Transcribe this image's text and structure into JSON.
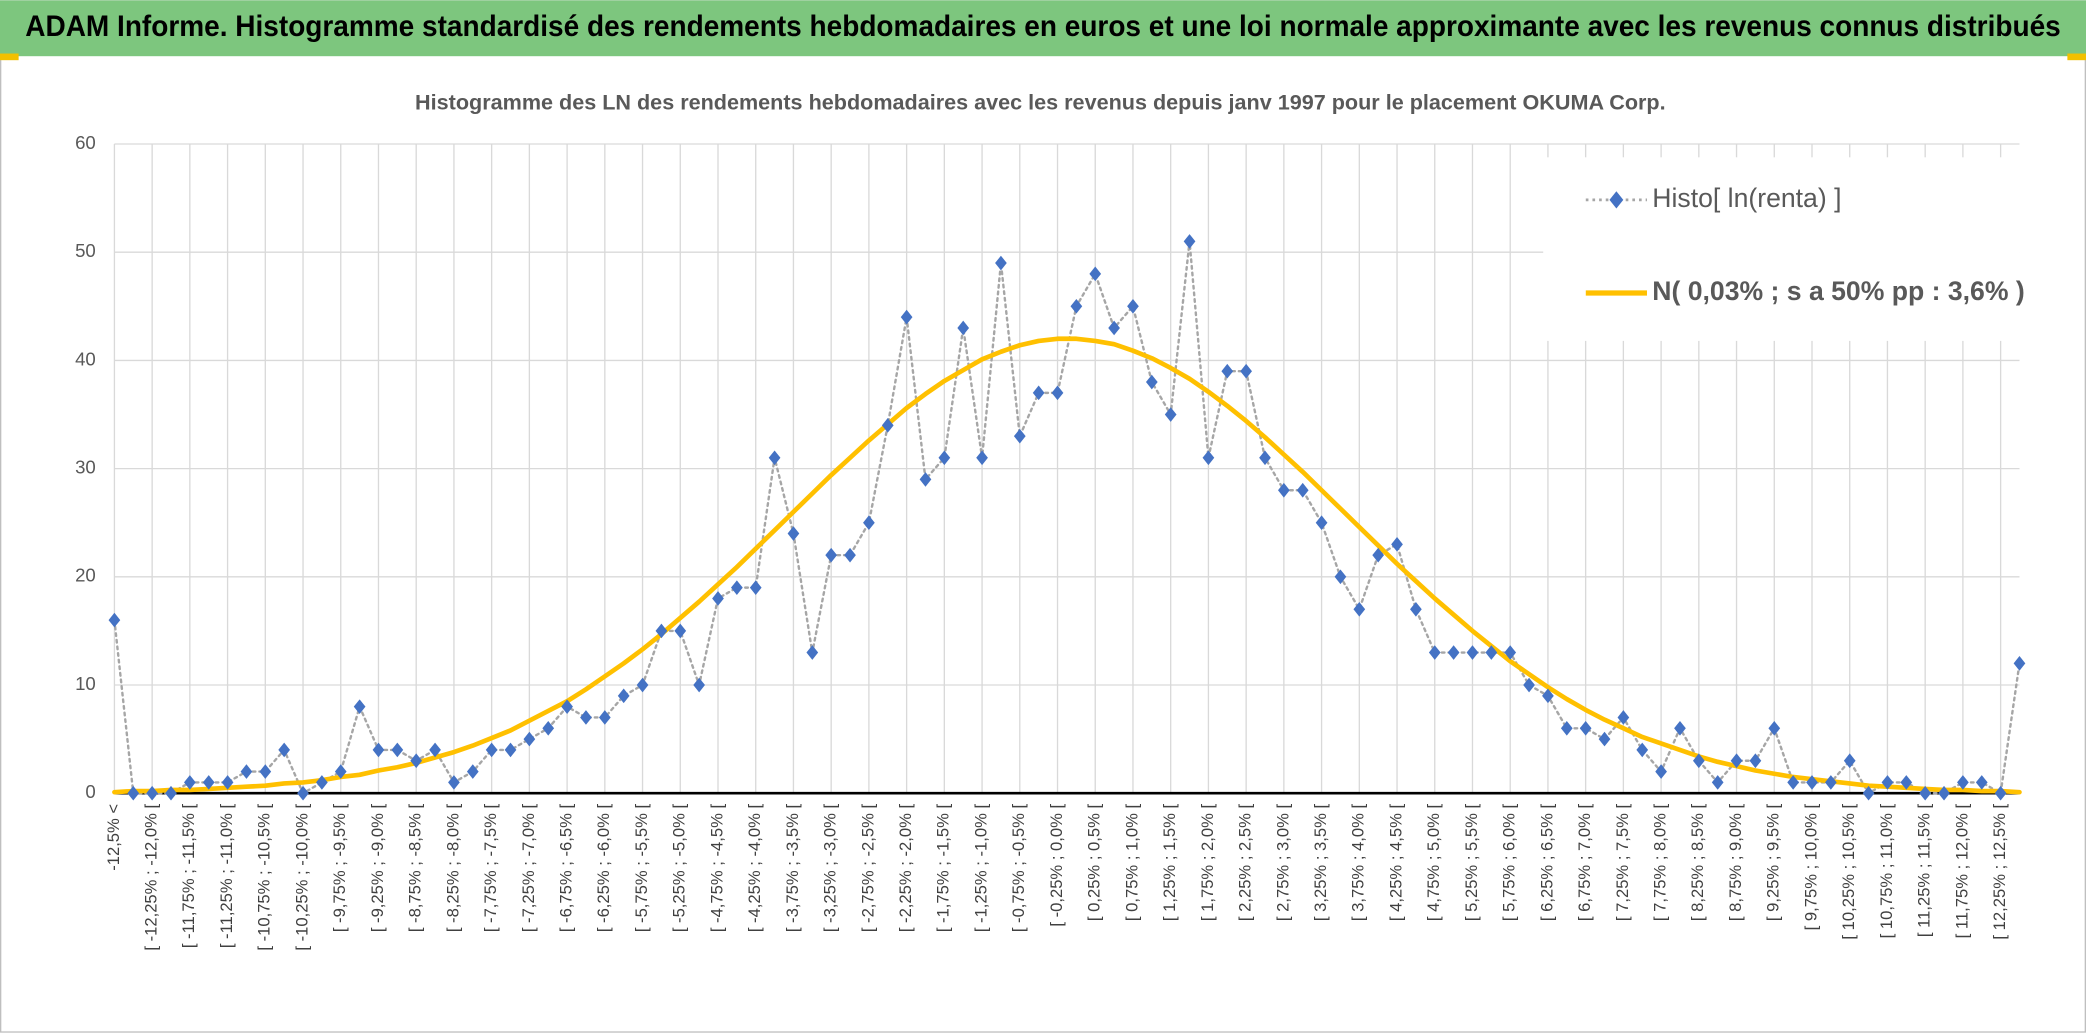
{
  "banner": "ADAM Informe. Histogramme standardisé des rendements hebdomadaires en euros et une loi normale approximante avec les revenus connus distribués",
  "chart_data": {
    "type": "line",
    "title": "Histogramme des LN des rendements hebdomadaires avec les revenus depuis janv 1997 pour le placement OKUMA Corp.",
    "categories": [
      "-12,5% <",
      null,
      "[ -12,25% ; -12,0% [",
      null,
      "[ -11,75% ; -11,5% [",
      null,
      "[ -11,25% ; -11,0% [",
      null,
      "[ -10,75% ; -10,5% [",
      null,
      "[ -10,25% ; -10,0% [",
      null,
      "[ -9,75% ; -9,5% [",
      null,
      "[ -9,25% ; -9,0% [",
      null,
      "[ -8,75% ; -8,5% [",
      null,
      "[ -8,25% ; -8,0% [",
      null,
      "[ -7,75% ; -7,5% [",
      null,
      "[ -7,25% ; -7,0% [",
      null,
      "[ -6,75% ; -6,5% [",
      null,
      "[ -6,25% ; -6,0% [",
      null,
      "[ -5,75% ; -5,5% [",
      null,
      "[ -5,25% ; -5,0% [",
      null,
      "[ -4,75% ; -4,5% [",
      null,
      "[ -4,25% ; -4,0% [",
      null,
      "[ -3,75% ; -3,5% [",
      null,
      "[ -3,25% ; -3,0% [",
      null,
      "[ -2,75% ; -2,5% [",
      null,
      "[ -2,25% ; -2,0% [",
      null,
      "[ -1,75% ; -1,5% [",
      null,
      "[ -1,25% ; -1,0% [",
      null,
      "[ -0,75% ; -0,5% [",
      null,
      "[ -0,25% ; 0,0% [",
      null,
      "[ 0,25% ; 0,5% [",
      null,
      "[ 0,75% ; 1,0% [",
      null,
      "[ 1,25% ; 1,5% [",
      null,
      "[ 1,75% ; 2,0% [",
      null,
      "[ 2,25% ; 2,5% [",
      null,
      "[ 2,75% ; 3,0% [",
      null,
      "[ 3,25% ; 3,5% [",
      null,
      "[ 3,75% ; 4,0% [",
      null,
      "[ 4,25% ; 4,5% [",
      null,
      "[ 4,75% ; 5,0% [",
      null,
      "[ 5,25% ; 5,5% [",
      null,
      "[ 5,75% ; 6,0% [",
      null,
      "[ 6,25% ; 6,5% [",
      null,
      "[ 6,75% ; 7,0% [",
      null,
      "[ 7,25% ; 7,5% [",
      null,
      "[ 7,75% ; 8,0% [",
      null,
      "[ 8,25% ; 8,5% [",
      null,
      "[ 8,75% ; 9,0% [",
      null,
      "[ 9,25% ; 9,5% [",
      null,
      "[ 9,75% ; 10,0% [",
      null,
      "[ 10,25% ; 10,5% [",
      null,
      "[ 10,75% ; 11,0% [",
      null,
      "[ 11,25% ; 11,5% [",
      null,
      "[ 11,75% ; 12,0% [",
      null,
      "[ 12,25% ; 12,5% [",
      null
    ],
    "series": [
      {
        "name": "Histo[ ln(renta) ]",
        "color": "#4472c4",
        "line_color": "#a6a6a6",
        "line_style": "dotted",
        "marker": "diamond",
        "values": [
          16,
          0,
          0,
          0,
          1,
          1,
          1,
          2,
          2,
          4,
          0,
          1,
          2,
          8,
          4,
          4,
          3,
          4,
          1,
          2,
          4,
          4,
          5,
          6,
          8,
          7,
          7,
          9,
          10,
          15,
          15,
          10,
          18,
          19,
          19,
          31,
          24,
          13,
          22,
          22,
          25,
          34,
          44,
          29,
          31,
          43,
          31,
          49,
          33,
          37,
          37,
          45,
          48,
          43,
          45,
          38,
          35,
          51,
          31,
          39,
          39,
          31,
          28,
          28,
          25,
          20,
          17,
          22,
          23,
          17,
          13,
          13,
          13,
          13,
          13,
          10,
          9,
          6,
          6,
          5,
          7,
          4,
          2,
          6,
          3,
          1,
          3,
          3,
          6,
          1,
          1,
          1,
          3,
          0,
          1,
          1,
          0,
          0,
          1,
          1,
          0,
          12
        ]
      },
      {
        "name": "N( 0,03% ; s a 50% pp : 3,6% )",
        "color": "#ffc000",
        "line_style": "solid",
        "marker": "none",
        "values": [
          0.1,
          0.2,
          0.2,
          0.3,
          0.3,
          0.4,
          0.5,
          0.6,
          0.7,
          0.9,
          1.0,
          1.2,
          1.5,
          1.7,
          2.1,
          2.4,
          2.8,
          3.3,
          3.8,
          4.4,
          5.1,
          5.8,
          6.7,
          7.6,
          8.5,
          9.6,
          10.8,
          12.0,
          13.3,
          14.7,
          16.2,
          17.7,
          19.3,
          20.9,
          22.6,
          24.3,
          26.0,
          27.7,
          29.4,
          31.0,
          32.6,
          34.1,
          35.6,
          36.9,
          38.1,
          39.1,
          40.1,
          40.8,
          41.4,
          41.8,
          42.0,
          42.0,
          41.8,
          41.5,
          40.9,
          40.2,
          39.3,
          38.3,
          37.1,
          35.8,
          34.4,
          32.9,
          31.3,
          29.7,
          28.0,
          26.3,
          24.6,
          22.9,
          21.2,
          19.6,
          18.0,
          16.5,
          15.0,
          13.6,
          12.2,
          11.0,
          9.8,
          8.7,
          7.7,
          6.8,
          6.0,
          5.2,
          4.6,
          4.0,
          3.4,
          2.9,
          2.5,
          2.1,
          1.8,
          1.5,
          1.3,
          1.1,
          0.9,
          0.7,
          0.6,
          0.5,
          0.4,
          0.3,
          0.3,
          0.2,
          0.2,
          0.1
        ]
      }
    ],
    "ylim": [
      0,
      60
    ],
    "yticks": [
      0,
      10,
      20,
      30,
      40,
      50,
      60
    ],
    "grid": true,
    "legend": "upper right"
  }
}
